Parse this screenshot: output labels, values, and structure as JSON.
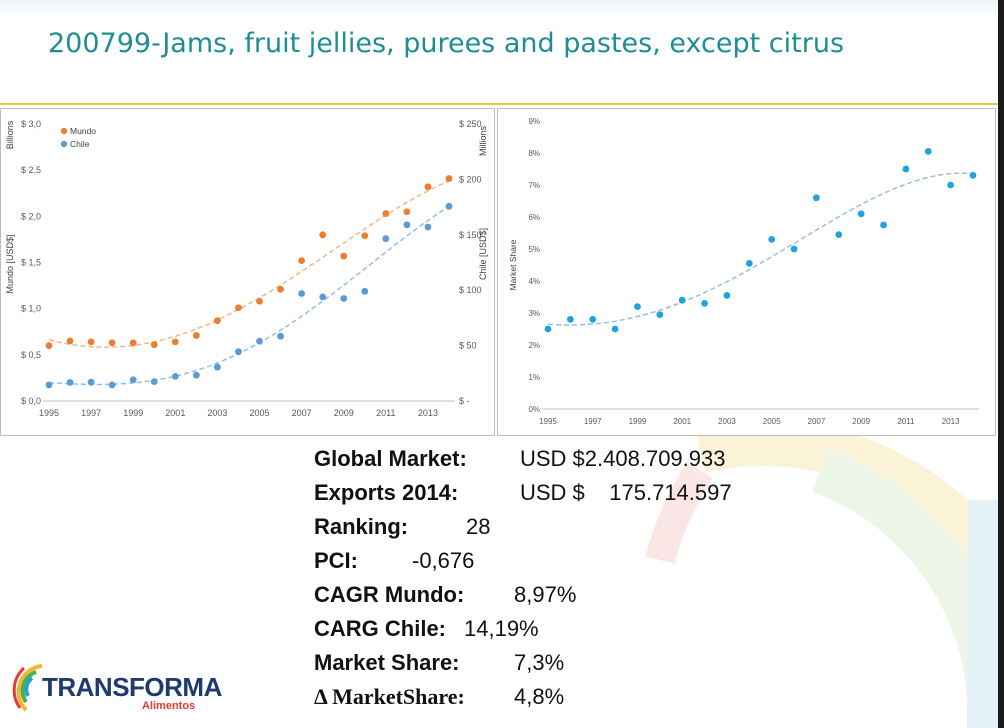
{
  "title": "200799-Jams, fruit jellies, purees and pastes, except citrus",
  "colors": {
    "mundo": "#ed7d31",
    "chile": "#5b9bd5",
    "title": "#1f8e93",
    "accent_line": "#e8c84a"
  },
  "chart_data": [
    {
      "type": "scatter",
      "x": [
        1995,
        1996,
        1997,
        1998,
        1999,
        2000,
        2001,
        2002,
        2003,
        2004,
        2005,
        2006,
        2007,
        2008,
        2009,
        2010,
        2011,
        2012,
        2013,
        2014
      ],
      "series": [
        {
          "name": "Mundo",
          "axis": "left",
          "values": [
            0.6,
            0.65,
            0.64,
            0.63,
            0.63,
            0.61,
            0.64,
            0.71,
            0.87,
            1.01,
            1.08,
            1.21,
            1.52,
            1.8,
            1.57,
            1.79,
            2.03,
            2.05,
            2.32,
            2.41
          ]
        },
        {
          "name": "Chile",
          "axis": "right",
          "values": [
            14.5,
            16.7,
            17.0,
            14.5,
            19.2,
            17.5,
            22.2,
            23.3,
            30.5,
            44.5,
            54.0,
            58.5,
            97.0,
            94.0,
            92.5,
            99.0,
            146.5,
            159.0,
            157.0,
            175.7
          ]
        }
      ],
      "y_left": {
        "label": "Mundo [USD$]",
        "unit": "Billions",
        "ylim": [
          0,
          3.0
        ],
        "ticks": [
          "$ 0,0",
          "$ 0,5",
          "$ 1,0",
          "$ 1,5",
          "$ 2,0",
          "$ 2,5",
          "$ 3,0"
        ]
      },
      "y_right": {
        "label": "Chile [USD$]",
        "unit": "Millions",
        "ylim": [
          0,
          250
        ],
        "ticks": [
          "$ -",
          "$ 50",
          "$ 100",
          "$ 150",
          "$ 200",
          "$ 250"
        ]
      },
      "xticks": [
        "1995",
        "1997",
        "1999",
        "2001",
        "2003",
        "2005",
        "2007",
        "2009",
        "2011",
        "2013"
      ],
      "trendlines": true,
      "legend": "top-left",
      "grid": false
    },
    {
      "type": "scatter",
      "x": [
        1995,
        1996,
        1997,
        1998,
        1999,
        2000,
        2001,
        2002,
        2003,
        2004,
        2005,
        2006,
        2007,
        2008,
        2009,
        2010,
        2011,
        2012,
        2013,
        2014
      ],
      "series": [
        {
          "name": "Market Share",
          "values": [
            2.5,
            2.8,
            2.8,
            2.5,
            3.2,
            2.95,
            3.4,
            3.3,
            3.55,
            4.55,
            5.3,
            5.0,
            6.6,
            5.45,
            6.1,
            5.75,
            7.5,
            8.05,
            7.0,
            7.3
          ]
        }
      ],
      "ylabel": "Market Share",
      "ylim": [
        0,
        9
      ],
      "yticks": [
        "0%",
        "1%",
        "2%",
        "3%",
        "4%",
        "5%",
        "6%",
        "7%",
        "8%",
        "9%"
      ],
      "xticks": [
        "1995",
        "1997",
        "1999",
        "2001",
        "2003",
        "2005",
        "2007",
        "2009",
        "2011",
        "2013"
      ],
      "trendline": true,
      "grid": false
    }
  ],
  "stats": [
    {
      "label": "Global Market:",
      "value": "USD $2.408.709.933"
    },
    {
      "label": "Exports 2014:",
      "value": "USD $    175.714.597"
    },
    {
      "label": "Ranking:",
      "value": "28"
    },
    {
      "label": "PCI:",
      "value": "-0,676"
    },
    {
      "label": "CAGR Mundo:",
      "value": "8,97%"
    },
    {
      "label": "CARG Chile:",
      "value": "14,19%"
    },
    {
      "label": "Market Share:",
      "value": "7,3%"
    },
    {
      "label": "Δ MarketShare:",
      "value": "4,8%"
    }
  ],
  "logo": {
    "name": "TRANSFORMA",
    "sub": "Alimentos"
  }
}
